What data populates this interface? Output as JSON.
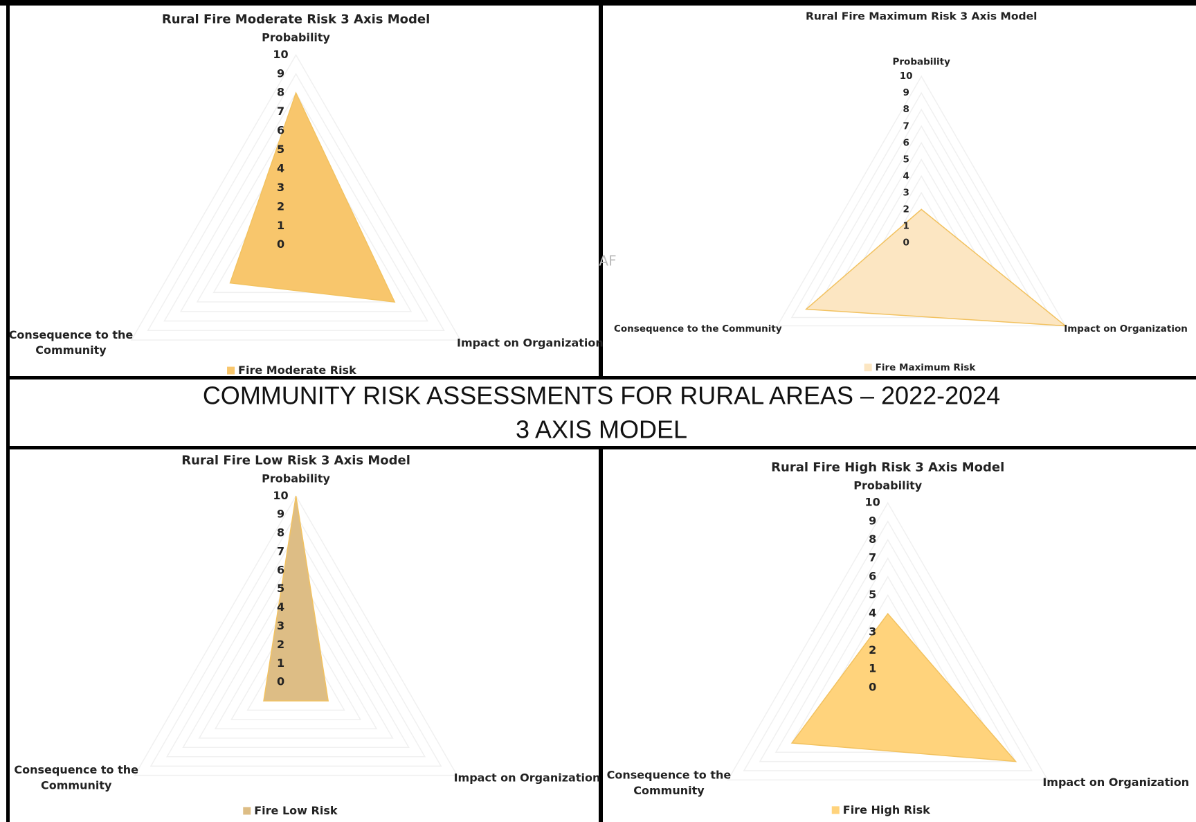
{
  "heading": {
    "lines": [
      "COMMUNITY RISK ASSESSMENTS FOR RURAL AREAS – 2022-2024",
      "3 AXIS MODEL"
    ]
  },
  "watermark": "AF",
  "chart_data": [
    {
      "type": "radar",
      "title": "Rural Fire Moderate Risk 3 Axis Model",
      "categories": [
        "Probability",
        "Impact on Organization",
        "Consequence to the Community"
      ],
      "series": [
        {
          "name": "Fire Moderate Risk",
          "color": "#F8C66C",
          "values": [
            8,
            6,
            4
          ]
        }
      ],
      "rlim": [
        0,
        10
      ],
      "rticks": [
        0,
        1,
        2,
        3,
        4,
        5,
        6,
        7,
        8,
        9,
        10
      ],
      "grid": true
    },
    {
      "type": "radar",
      "title": "Rural Fire Maximum Risk 3 Axis Model",
      "categories": [
        "Probability",
        "Impact on Organization",
        "Consequence to the Community"
      ],
      "series": [
        {
          "name": "Fire Maximum Risk",
          "color": "#FCE6C2",
          "values": [
            2,
            10,
            8
          ]
        }
      ],
      "rlim": [
        0,
        10
      ],
      "rticks": [
        0,
        1,
        2,
        3,
        4,
        5,
        6,
        7,
        8,
        9,
        10
      ],
      "grid": true
    },
    {
      "type": "radar",
      "title": "Rural Fire Low Risk 3 Axis Model",
      "categories": [
        "Probability",
        "Impact on Organization",
        "Consequence to the Community"
      ],
      "series": [
        {
          "name": "Fire Low Risk",
          "color": "#DDBD85",
          "values": [
            10,
            2,
            2
          ]
        }
      ],
      "rlim": [
        0,
        10
      ],
      "rticks": [
        0,
        1,
        2,
        3,
        4,
        5,
        6,
        7,
        8,
        9,
        10
      ],
      "grid": true
    },
    {
      "type": "radar",
      "title": "Rural Fire High Risk 3 Axis Model",
      "categories": [
        "Probability",
        "Impact on Organization",
        "Consequence to the Community"
      ],
      "series": [
        {
          "name": "Fire High Risk",
          "color": "#FFD37C",
          "values": [
            4,
            8,
            6
          ]
        }
      ],
      "rlim": [
        0,
        10
      ],
      "rticks": [
        0,
        1,
        2,
        3,
        4,
        5,
        6,
        7,
        8,
        9,
        10
      ],
      "grid": true
    }
  ]
}
